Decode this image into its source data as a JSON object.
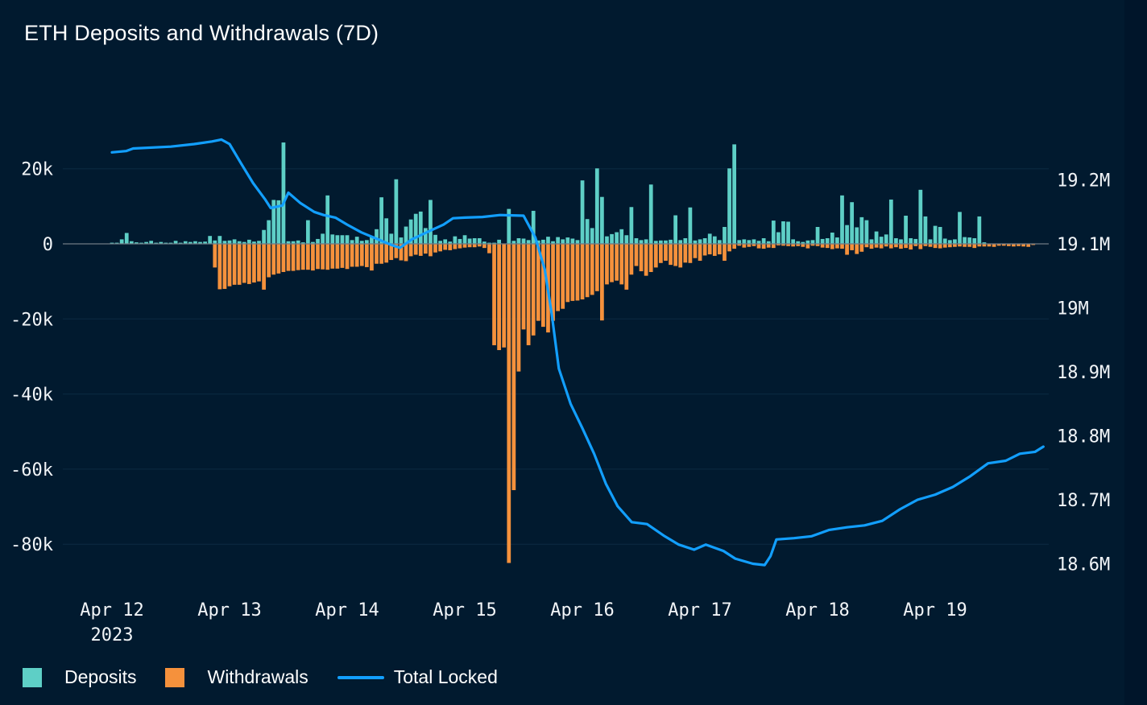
{
  "title": "ETH Deposits and Withdrawals (7D)",
  "legend": {
    "deposits": "Deposits",
    "withdrawals": "Withdrawals",
    "total_locked": "Total Locked"
  },
  "colors": {
    "deposits": "#5ecfc6",
    "withdrawals": "#f5913c",
    "total_locked": "#129fff",
    "zero_line": "#6f7a84",
    "grid": "#0c2a42"
  },
  "chart_data": {
    "type": "bar",
    "title": "ETH Deposits and Withdrawals (7D)",
    "x_axis": {
      "ticks": [
        {
          "day": 0,
          "label": "Apr 12",
          "sublabel": "2023"
        },
        {
          "day": 1,
          "label": "Apr 13"
        },
        {
          "day": 2,
          "label": "Apr 14"
        },
        {
          "day": 3,
          "label": "Apr 15"
        },
        {
          "day": 4,
          "label": "Apr 16"
        },
        {
          "day": 5,
          "label": "Apr 17"
        },
        {
          "day": 6,
          "label": "Apr 18"
        },
        {
          "day": 7,
          "label": "Apr 19"
        }
      ]
    },
    "y_left": {
      "range": [
        -90000,
        30000
      ],
      "ticks": [
        {
          "value": 20000,
          "label": "20k"
        },
        {
          "value": 0,
          "label": "0"
        },
        {
          "value": -20000,
          "label": "-20k"
        },
        {
          "value": -40000,
          "label": "-40k"
        },
        {
          "value": -60000,
          "label": "-60k"
        },
        {
          "value": -80000,
          "label": "-80k"
        }
      ]
    },
    "y_right": {
      "range": [
        18550000,
        19300000
      ],
      "ticks": [
        {
          "value": 19200000,
          "label": "19.2M"
        },
        {
          "value": 19100000,
          "label": "19.1M"
        },
        {
          "value": 19000000,
          "label": "19M"
        },
        {
          "value": 18900000,
          "label": "18.9M"
        },
        {
          "value": 18800000,
          "label": "18.8M"
        },
        {
          "value": 18700000,
          "label": "18.7M"
        },
        {
          "value": 18600000,
          "label": "18.6M"
        }
      ]
    },
    "bar_interval_days": 0.04167,
    "series": [
      {
        "name": "Deposits",
        "values": [
          300,
          300,
          1200,
          2900,
          700,
          400,
          300,
          500,
          800,
          300,
          500,
          300,
          300,
          800,
          300,
          700,
          500,
          700,
          500,
          600,
          2100,
          900,
          2100,
          800,
          900,
          1200,
          700,
          500,
          1100,
          600,
          800,
          3700,
          6300,
          11700,
          11600,
          27000,
          700,
          700,
          900,
          400,
          6300,
          500,
          1300,
          2700,
          12900,
          2500,
          2300,
          2300,
          2300,
          1000,
          1900,
          800,
          1000,
          1900,
          3900,
          12400,
          6800,
          2700,
          17200,
          1700,
          4600,
          6500,
          8000,
          8600,
          4200,
          11700,
          2400,
          800,
          1200,
          600,
          2000,
          1300,
          2300,
          1400,
          1500,
          1500,
          600,
          300,
          300,
          1100,
          0,
          9300,
          800,
          1500,
          1400,
          1000,
          8800,
          900,
          1100,
          1900,
          700,
          1800,
          1200,
          1700,
          1400,
          1000,
          16900,
          6600,
          4200,
          20100,
          12500,
          2000,
          2600,
          3100,
          3900,
          2300,
          9800,
          1500,
          1000,
          1200,
          15800,
          800,
          900,
          900,
          1100,
          7600,
          1000,
          1500,
          9700,
          900,
          1200,
          1500,
          2700,
          2000,
          1000,
          4500,
          20100,
          26500,
          1000,
          1200,
          1000,
          1200,
          800,
          1500,
          700,
          6200,
          3100,
          6000,
          5900,
          1200,
          700,
          500,
          900,
          1000,
          4500,
          1300,
          1500,
          3000,
          1700,
          12900,
          5000,
          11100,
          4400,
          7100,
          6300,
          1200,
          3300,
          1900,
          2500,
          11800,
          1500,
          1200,
          7500,
          1500,
          1300,
          14400,
          7300,
          1200,
          4800,
          4500,
          1400,
          1000,
          1200,
          8500,
          1800,
          1700,
          1500,
          7300,
          400
        ],
        "color": "#5ecfc6"
      },
      {
        "name": "Withdrawals",
        "values": [
          0,
          0,
          0,
          0,
          0,
          0,
          0,
          0,
          0,
          0,
          0,
          0,
          0,
          0,
          0,
          0,
          0,
          0,
          0,
          0,
          0,
          -6300,
          -12100,
          -12000,
          -11300,
          -10900,
          -10900,
          -10400,
          -10700,
          -10300,
          -10000,
          -12200,
          -8900,
          -8200,
          -7900,
          -7500,
          -7200,
          -7200,
          -7000,
          -6900,
          -6900,
          -7100,
          -6700,
          -6800,
          -6900,
          -6600,
          -6600,
          -6400,
          -6700,
          -6100,
          -6100,
          -5900,
          -6200,
          -7100,
          -5300,
          -5300,
          -5000,
          -4300,
          -3800,
          -4400,
          -4600,
          -3300,
          -2900,
          -3200,
          -2600,
          -3300,
          -2300,
          -2000,
          -1600,
          -1700,
          -1400,
          -1200,
          -1000,
          -900,
          -900,
          -700,
          -1100,
          -2500,
          -27000,
          -28300,
          -27600,
          -85000,
          -65600,
          -34000,
          -22800,
          -27000,
          -24400,
          -20500,
          -22100,
          -23600,
          -20500,
          -17900,
          -17300,
          -15500,
          -15200,
          -15100,
          -14800,
          -14200,
          -13600,
          -12600,
          -20400,
          -10800,
          -10200,
          -9800,
          -10800,
          -12200,
          -8200,
          -5900,
          -7300,
          -8500,
          -7500,
          -6300,
          -5100,
          -4500,
          -5600,
          -5900,
          -6300,
          -5000,
          -5100,
          -3800,
          -4500,
          -3100,
          -2800,
          -3200,
          -2800,
          -4500,
          -2000,
          -1300,
          -500,
          -1000,
          -800,
          -600,
          -1200,
          -1300,
          -1000,
          -1100,
          -400,
          -500,
          -600,
          -700,
          -600,
          -800,
          -1200,
          -500,
          -600,
          -1000,
          -1100,
          -1400,
          -1200,
          -1300,
          -2900,
          -1700,
          -2700,
          -2100,
          -900,
          -1300,
          -1000,
          -1200,
          -700,
          -1200,
          -900,
          -1300,
          -1100,
          -1500,
          -600,
          -1400,
          -600,
          -800,
          -1100,
          -1200,
          -1000,
          -900,
          -800,
          -700,
          -800,
          -800,
          -1100,
          -700,
          -700,
          -700,
          -800,
          -500,
          -500,
          -600,
          -700,
          -600,
          -700,
          -800,
          -300
        ],
        "color": "#f5913c"
      },
      {
        "name": "Total Locked",
        "type": "line",
        "points": [
          [
            0.0,
            19243000
          ],
          [
            0.12,
            19245000
          ],
          [
            0.18,
            19249000
          ],
          [
            0.5,
            19252000
          ],
          [
            0.7,
            19256000
          ],
          [
            0.85,
            19260000
          ],
          [
            0.93,
            19263000
          ],
          [
            1.0,
            19256000
          ],
          [
            1.1,
            19225000
          ],
          [
            1.2,
            19195000
          ],
          [
            1.3,
            19170000
          ],
          [
            1.35,
            19156000
          ],
          [
            1.45,
            19160000
          ],
          [
            1.5,
            19180000
          ],
          [
            1.6,
            19164000
          ],
          [
            1.72,
            19150000
          ],
          [
            1.8,
            19145000
          ],
          [
            1.9,
            19141000
          ],
          [
            2.0,
            19130000
          ],
          [
            2.12,
            19118000
          ],
          [
            2.25,
            19108000
          ],
          [
            2.38,
            19098000
          ],
          [
            2.45,
            19094000
          ],
          [
            2.55,
            19107000
          ],
          [
            2.7,
            19120000
          ],
          [
            2.82,
            19130000
          ],
          [
            2.9,
            19140000
          ],
          [
            3.0,
            19141000
          ],
          [
            3.15,
            19142000
          ],
          [
            3.3,
            19145000
          ],
          [
            3.5,
            19144000
          ],
          [
            3.6,
            19110000
          ],
          [
            3.68,
            19060000
          ],
          [
            3.74,
            18990000
          ],
          [
            3.8,
            18905000
          ],
          [
            3.9,
            18850000
          ],
          [
            4.0,
            18812000
          ],
          [
            4.1,
            18772000
          ],
          [
            4.2,
            18725000
          ],
          [
            4.3,
            18690000
          ],
          [
            4.42,
            18665000
          ],
          [
            4.55,
            18662000
          ],
          [
            4.7,
            18643000
          ],
          [
            4.82,
            18630000
          ],
          [
            4.95,
            18622000
          ],
          [
            5.05,
            18630000
          ],
          [
            5.2,
            18620000
          ],
          [
            5.3,
            18608000
          ],
          [
            5.45,
            18600000
          ],
          [
            5.55,
            18598000
          ],
          [
            5.6,
            18612000
          ],
          [
            5.65,
            18638000
          ],
          [
            5.8,
            18640000
          ],
          [
            5.95,
            18643000
          ],
          [
            6.1,
            18653000
          ],
          [
            6.25,
            18657000
          ],
          [
            6.4,
            18660000
          ],
          [
            6.55,
            18667000
          ],
          [
            6.7,
            18685000
          ],
          [
            6.85,
            18700000
          ],
          [
            7.0,
            18708000
          ],
          [
            7.15,
            18720000
          ],
          [
            7.3,
            18737000
          ],
          [
            7.45,
            18757000
          ],
          [
            7.6,
            18761000
          ],
          [
            7.72,
            18772000
          ],
          [
            7.85,
            18775000
          ],
          [
            7.92,
            18783000
          ]
        ],
        "color": "#129fff"
      }
    ],
    "grid": true,
    "legend_position": "bottom-left"
  }
}
